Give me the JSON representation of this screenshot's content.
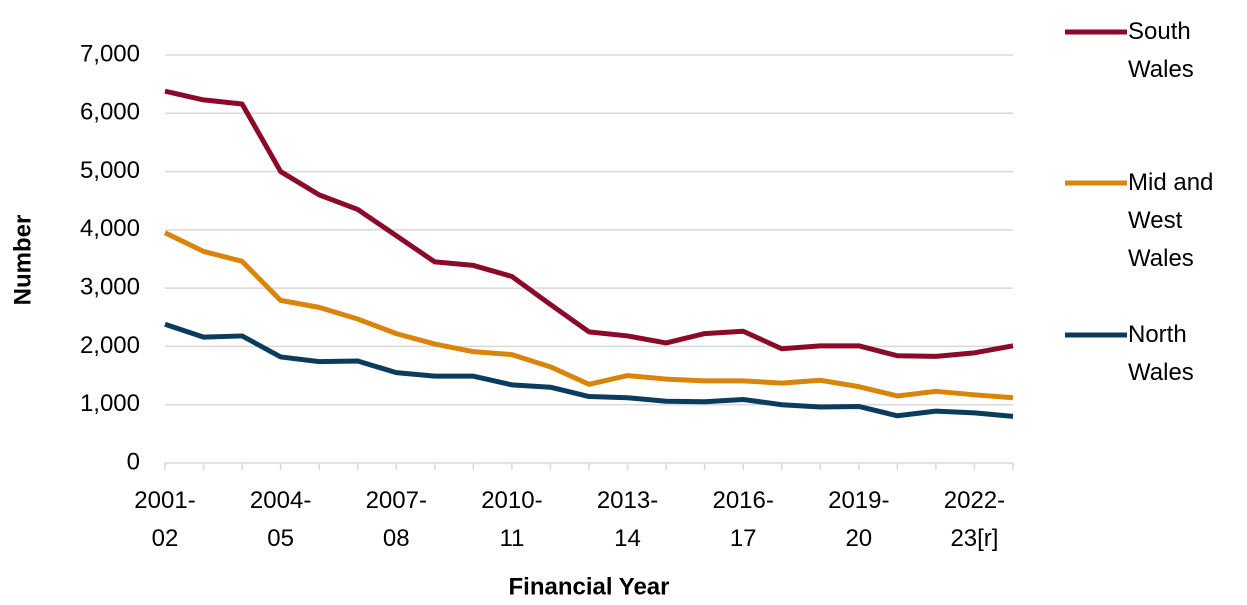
{
  "chart_data": {
    "type": "line",
    "x_label": "Financial Year",
    "y_label": "Number",
    "categories": [
      "2001-02",
      null,
      null,
      "2004-05",
      null,
      null,
      "2007-08",
      null,
      null,
      "2010-11",
      null,
      null,
      "2013-14",
      null,
      null,
      "2016-17",
      null,
      null,
      "2019-20",
      null,
      null,
      "2022-23[r]",
      null
    ],
    "series": [
      {
        "name": "South Wales",
        "color": "#8b0a29",
        "values": [
          6380,
          6230,
          6160,
          5000,
          4600,
          4350,
          3900,
          3450,
          3390,
          3200,
          2720,
          2250,
          2180,
          2060,
          2220,
          2260,
          1960,
          2010,
          2010,
          1840,
          1830,
          1890,
          2010
        ]
      },
      {
        "name": "Mid and West Wales",
        "color": "#d9840a",
        "values": [
          3950,
          3630,
          3460,
          2790,
          2670,
          2470,
          2220,
          2040,
          1910,
          1860,
          1650,
          1350,
          1500,
          1440,
          1410,
          1410,
          1370,
          1420,
          1310,
          1150,
          1230,
          1170,
          1120
        ]
      },
      {
        "name": "North Wales",
        "color": "#0b3c5d",
        "values": [
          2380,
          2160,
          2180,
          1820,
          1740,
          1750,
          1550,
          1490,
          1490,
          1340,
          1300,
          1140,
          1120,
          1060,
          1050,
          1090,
          1000,
          960,
          970,
          810,
          890,
          860,
          800
        ]
      }
    ],
    "ylim": [
      0,
      7000
    ],
    "yticks": [
      0,
      {
        "value": 1000,
        "label": "1,000"
      },
      {
        "value": 2000,
        "label": "2,000"
      },
      {
        "value": 3000,
        "label": "3,000"
      },
      {
        "value": 4000,
        "label": "4,000"
      },
      {
        "value": 5000,
        "label": "5,000"
      },
      {
        "value": 6000,
        "label": "6,000"
      },
      {
        "value": 7000,
        "label": "7,000"
      }
    ],
    "grid": true,
    "legend": "right"
  }
}
